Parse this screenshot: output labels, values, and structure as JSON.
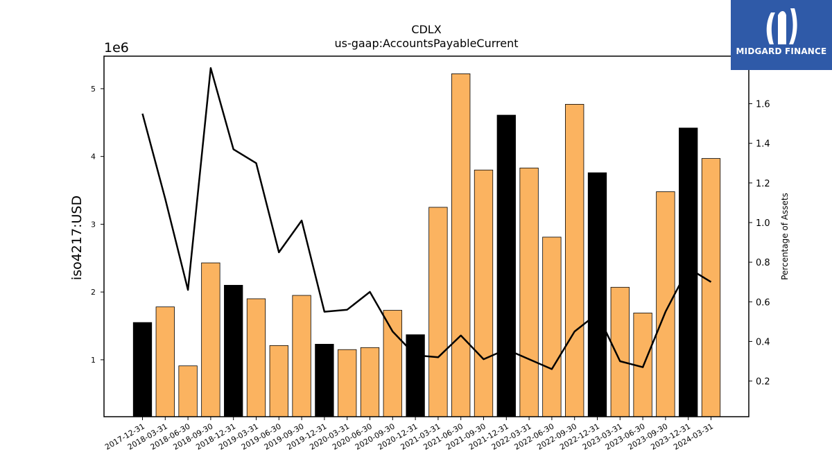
{
  "logo": {
    "text": "MIDGARD FINANCE",
    "icon": "midgard-logo-icon",
    "background": "#2f5aa8"
  },
  "chart_data": {
    "type": "bar",
    "title": "CDLX",
    "subtitle": "us-gaap:AccountsPayableCurrent",
    "ylabel": "iso4217:USD",
    "y_offset_label": "1e6",
    "y2label": "Percentage of Assets",
    "categories": [
      "2017-12-31",
      "2018-03-31",
      "2018-06-30",
      "2018-09-30",
      "2018-12-31",
      "2019-03-31",
      "2019-06-30",
      "2019-09-30",
      "2019-12-31",
      "2020-03-31",
      "2020-06-30",
      "2020-09-30",
      "2020-12-31",
      "2021-03-31",
      "2021-06-30",
      "2021-09-30",
      "2021-12-31",
      "2022-03-31",
      "2022-06-30",
      "2022-09-30",
      "2022-12-31",
      "2023-03-31",
      "2023-06-30",
      "2023-09-30",
      "2023-12-31",
      "2024-03-31"
    ],
    "values": [
      1550000,
      1780000,
      910000,
      2430000,
      2100000,
      1900000,
      1210000,
      1950000,
      1230000,
      1150000,
      1180000,
      1730000,
      1370000,
      3250000,
      5220000,
      3800000,
      4610000,
      3830000,
      2810000,
      4770000,
      3760000,
      2070000,
      1690000,
      3480000,
      4420000,
      3970000
    ],
    "year_end": [
      true,
      false,
      false,
      false,
      true,
      false,
      false,
      false,
      true,
      false,
      false,
      false,
      true,
      false,
      false,
      false,
      true,
      false,
      false,
      false,
      true,
      false,
      false,
      false,
      true,
      false
    ],
    "line_values": [
      1.55,
      1.12,
      0.66,
      1.78,
      1.37,
      1.3,
      0.85,
      1.01,
      0.55,
      0.56,
      0.65,
      0.45,
      0.33,
      0.32,
      0.43,
      0.31,
      0.36,
      0.31,
      0.26,
      0.45,
      0.54,
      0.3,
      0.27,
      0.55,
      0.77,
      0.7
    ],
    "ylim": [
      160000,
      5480000
    ],
    "y2lim": [
      0.02,
      1.84
    ],
    "yticks": [
      1000000,
      2000000,
      3000000,
      4000000,
      5000000
    ],
    "ytick_labels": [
      "1",
      "2",
      "3",
      "4",
      "5"
    ],
    "y2ticks": [
      0.2,
      0.4,
      0.6,
      0.8,
      1.0,
      1.2,
      1.4,
      1.6
    ],
    "y2tick_labels": [
      "0.2",
      "0.4",
      "0.6",
      "0.8",
      "1.0",
      "1.2",
      "1.4",
      "1.6"
    ],
    "colors": {
      "bar_year_end": "#000000",
      "bar_quarter": "#fbb360",
      "line": "#000000"
    },
    "grid": false
  }
}
